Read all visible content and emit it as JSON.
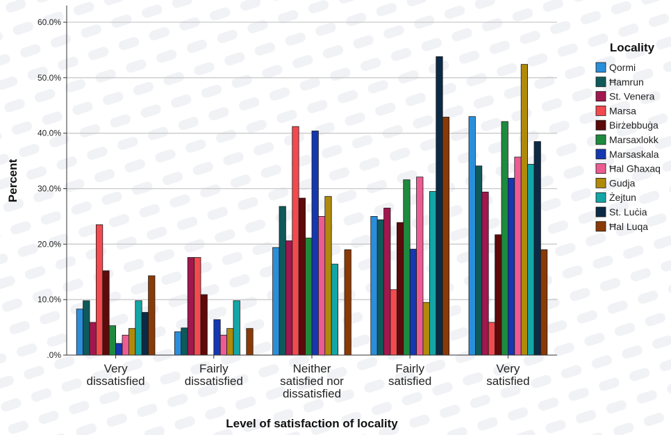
{
  "chart_data": {
    "type": "bar",
    "xlabel": "Level of satisfaction of locality",
    "ylabel": "Percent",
    "ylim": [
      0,
      60
    ],
    "yticks": [
      ".0%",
      "10.0%",
      "20.0%",
      "30.0%",
      "40.0%",
      "50.0%",
      "60.0%"
    ],
    "categories": [
      [
        "Very",
        "dissatisfied"
      ],
      [
        "Fairly",
        "dissatisfied"
      ],
      [
        "Neither",
        "satisfied nor",
        "dissatisfied"
      ],
      [
        "Fairly",
        "satisfied"
      ],
      [
        "Very",
        "satisfied"
      ]
    ],
    "legend_title": "Locality",
    "legend_position": "right",
    "grid": "horizontal",
    "series": [
      {
        "name": "Qormi",
        "color": "#2A8FDB",
        "values": [
          8.3,
          4.2,
          19.4,
          25.0,
          43.0
        ]
      },
      {
        "name": "Ħamrun",
        "color": "#0E5A5A",
        "values": [
          9.8,
          4.9,
          26.8,
          24.4,
          34.1
        ]
      },
      {
        "name": "St. Venera",
        "color": "#A1174E",
        "values": [
          5.9,
          17.6,
          20.6,
          26.5,
          29.4
        ]
      },
      {
        "name": "Marsa",
        "color": "#F24A4F",
        "values": [
          23.5,
          17.6,
          41.2,
          11.8,
          5.9
        ]
      },
      {
        "name": "Birżebbuġa",
        "color": "#5C0A0A",
        "values": [
          15.2,
          10.9,
          28.3,
          23.9,
          21.7
        ]
      },
      {
        "name": "Marsaxlokk",
        "color": "#1D8B3E",
        "values": [
          5.3,
          0.0,
          21.1,
          31.6,
          42.1
        ]
      },
      {
        "name": "Marsaskala",
        "color": "#1537B0",
        "values": [
          2.1,
          6.4,
          40.4,
          19.1,
          31.9
        ]
      },
      {
        "name": "Ħal Għaxaq",
        "color": "#EC5C92",
        "values": [
          3.6,
          3.6,
          25.0,
          32.1,
          35.7
        ]
      },
      {
        "name": "Gudja",
        "color": "#B08A0B",
        "values": [
          4.8,
          4.8,
          28.6,
          9.5,
          52.4
        ]
      },
      {
        "name": "Żejtun",
        "color": "#14A6A6",
        "values": [
          9.8,
          9.8,
          16.4,
          29.5,
          34.4
        ]
      },
      {
        "name": "St. Luċia",
        "color": "#0B2A45",
        "values": [
          7.7,
          0.0,
          0.0,
          53.8,
          38.5
        ]
      },
      {
        "name": "Ħal Luqa",
        "color": "#8A3A06",
        "values": [
          14.3,
          4.8,
          19.0,
          42.9,
          19.0
        ]
      }
    ]
  }
}
